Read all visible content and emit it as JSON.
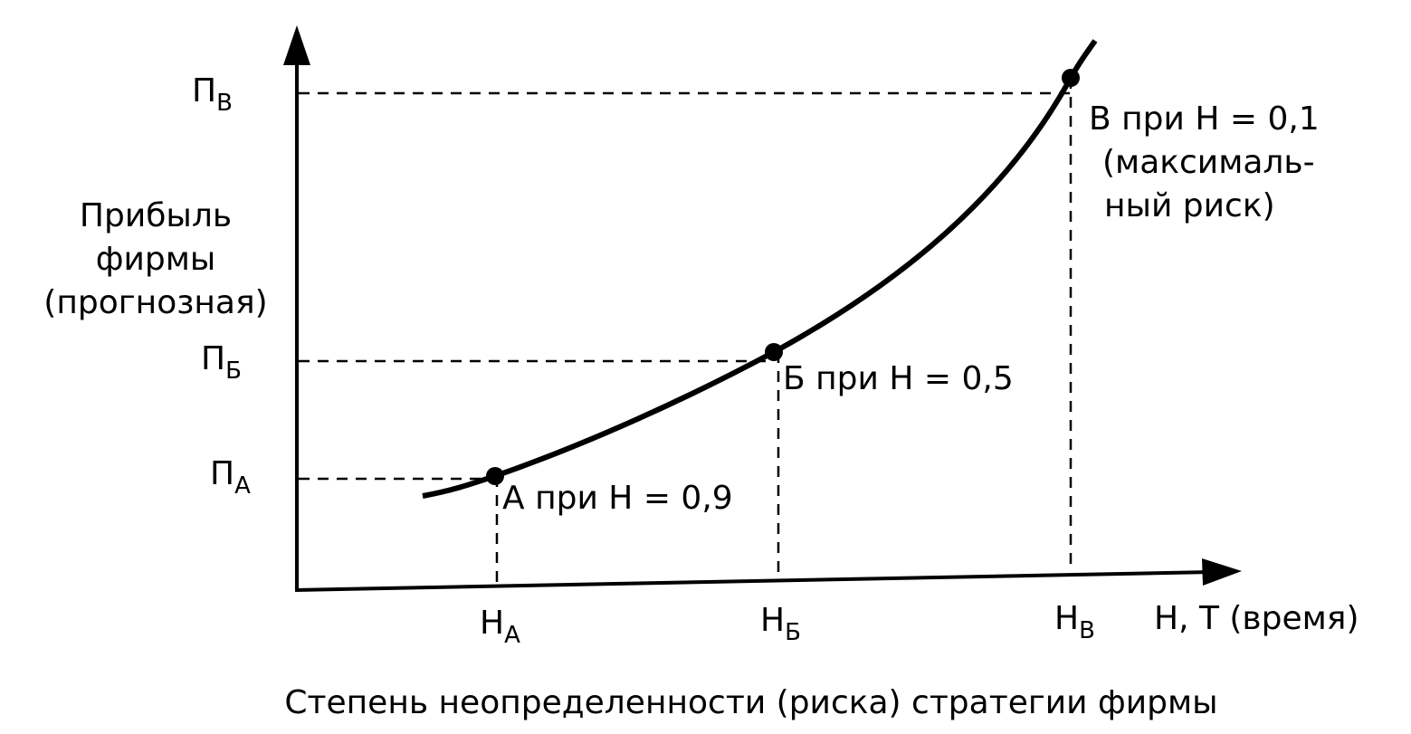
{
  "y_axis": {
    "title_lines": [
      "Прибыль",
      "фирмы",
      "(прогнозная)"
    ],
    "ticks": [
      {
        "main": "П",
        "sub": "В"
      },
      {
        "main": "П",
        "sub": "Б"
      },
      {
        "main": "П",
        "sub": "А"
      }
    ]
  },
  "x_axis": {
    "label": "Н, Т (время)",
    "ticks": [
      {
        "main": "Н",
        "sub": "А"
      },
      {
        "main": "Н",
        "sub": "Б"
      },
      {
        "main": "Н",
        "sub": "В"
      }
    ],
    "title": "Степень неопределенности (риска) стратегии фирмы"
  },
  "points": [
    {
      "label_lines": [
        "А при Н = 0,9"
      ]
    },
    {
      "label_lines": [
        "Б при Н = 0,5"
      ]
    },
    {
      "label_lines": [
        "В при Н = 0,1",
        "(максималь-",
        "ный риск)"
      ]
    }
  ]
}
